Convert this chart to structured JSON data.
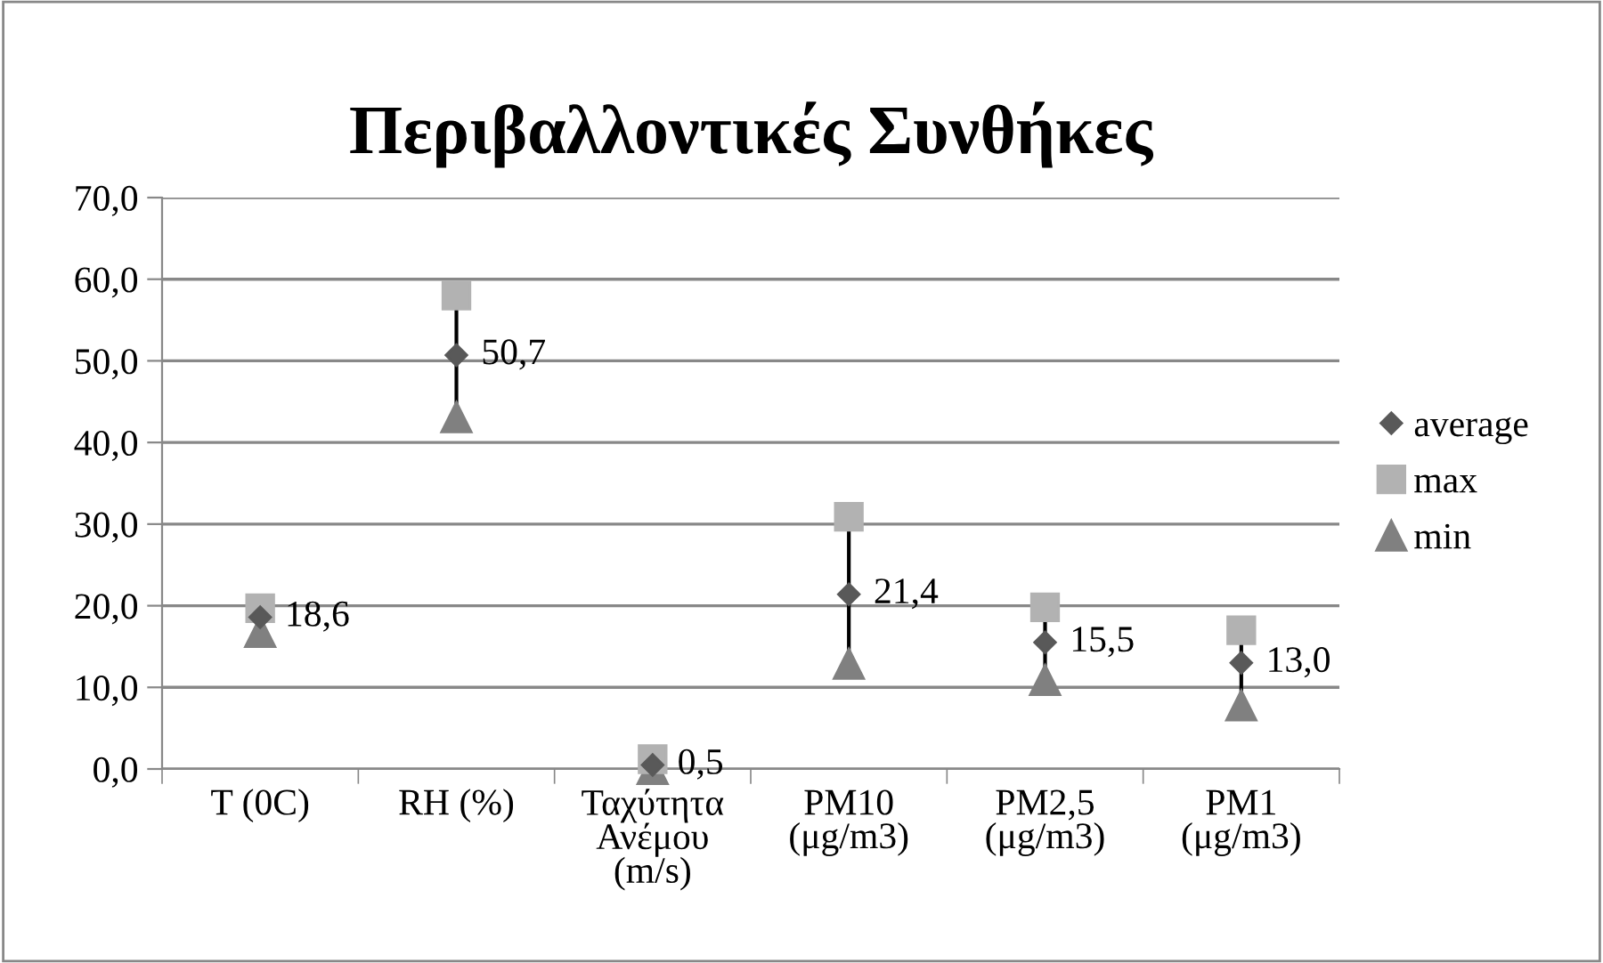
{
  "chart_data": {
    "type": "scatter",
    "title": "Περιβαλλοντικές Συνθήκες",
    "categories": [
      "T (0C)",
      "RH (%)",
      "Ταχύτητα\nΑνέμου\n(m/s)",
      "PM10\n(μg/m3)",
      "PM2,5\n(μg/m3)",
      "PM1\n(μg/m3)"
    ],
    "series": [
      {
        "name": "average",
        "color": "#595959",
        "marker": "diamond",
        "values": [
          18.6,
          50.7,
          0.5,
          21.4,
          15.5,
          13.0
        ],
        "value_labels": [
          "18,6",
          "50,7",
          "0,5",
          "21,4",
          "15,5",
          "13,0"
        ]
      },
      {
        "name": "max",
        "color": "#b2b2b2",
        "marker": "square",
        "values": [
          19.7,
          58.0,
          1.2,
          30.9,
          19.8,
          17.0
        ]
      },
      {
        "name": "min",
        "color": "#808080",
        "marker": "triangle",
        "values": [
          16.8,
          43.1,
          0.0,
          12.9,
          10.9,
          7.8
        ]
      }
    ],
    "ylim": [
      0,
      70
    ],
    "yticks": [
      {
        "value": 0,
        "label": "0,0"
      },
      {
        "value": 10,
        "label": "10,0"
      },
      {
        "value": 20,
        "label": "20,0"
      },
      {
        "value": 30,
        "label": "30,0"
      },
      {
        "value": 40,
        "label": "40,0"
      },
      {
        "value": 50,
        "label": "50,0"
      },
      {
        "value": 60,
        "label": "60,0"
      },
      {
        "value": 70,
        "label": "70,0"
      }
    ],
    "grid": "y",
    "legend": "right"
  }
}
